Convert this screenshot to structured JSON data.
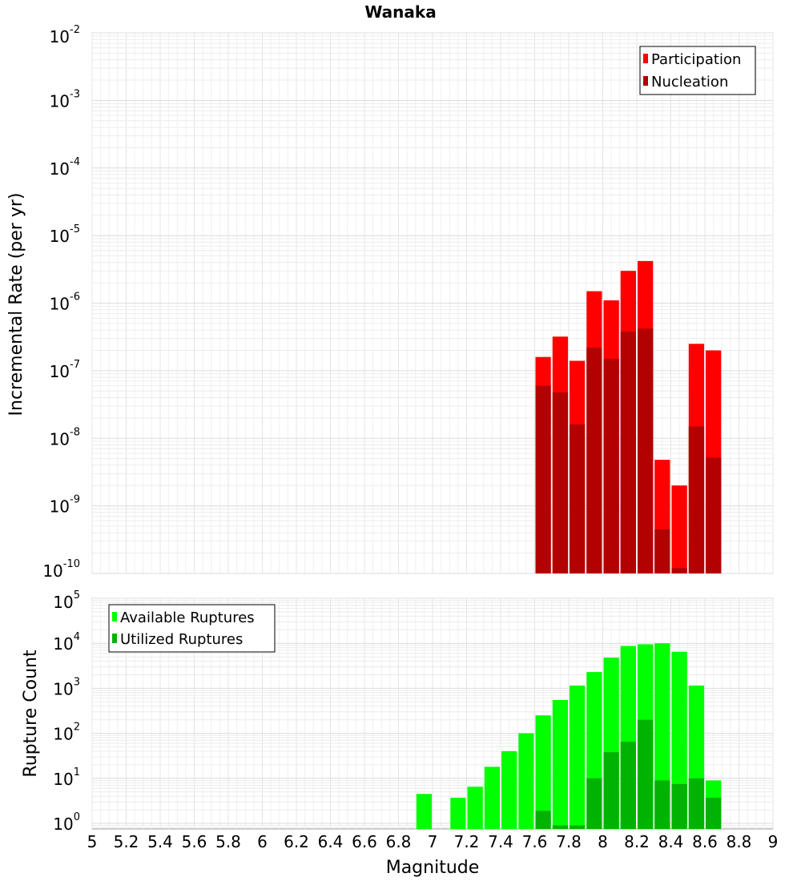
{
  "title": "Wanaka",
  "xlabel": "Magnitude",
  "x_ticks": [
    "5",
    "5.2",
    "5.4",
    "5.6",
    "5.8",
    "6",
    "6.2",
    "6.4",
    "6.6",
    "6.8",
    "7",
    "7.2",
    "7.4",
    "7.6",
    "7.8",
    "8",
    "8.2",
    "8.4",
    "8.6",
    "8.8",
    "9"
  ],
  "chart_data": [
    {
      "type": "bar",
      "title": "Wanaka",
      "xlabel": "",
      "ylabel": "Incremental Rate (per yr)",
      "yscale": "log",
      "ylim": [
        1e-10,
        0.01
      ],
      "xlim": [
        5,
        9
      ],
      "grid": true,
      "legend_position": "top-right",
      "bar_width": 0.1,
      "y_ticks": [
        {
          "base": "10",
          "exp": "-2"
        },
        {
          "base": "10",
          "exp": "-3"
        },
        {
          "base": "10",
          "exp": "-4"
        },
        {
          "base": "10",
          "exp": "-5"
        },
        {
          "base": "10",
          "exp": "-6"
        },
        {
          "base": "10",
          "exp": "-7"
        },
        {
          "base": "10",
          "exp": "-8"
        },
        {
          "base": "10",
          "exp": "-9"
        },
        {
          "base": "10",
          "exp": "-10"
        }
      ],
      "x": [
        7.65,
        7.75,
        7.85,
        7.95,
        8.05,
        8.15,
        8.25,
        8.35,
        8.45,
        8.55,
        8.65
      ],
      "series": [
        {
          "name": "Participation",
          "color": "#ff0000",
          "values": [
            1.6e-07,
            3.2e-07,
            1.4e-07,
            1.5e-06,
            1.1e-06,
            3e-06,
            4.2e-06,
            4.8e-09,
            2e-09,
            2.5e-07,
            2e-07
          ]
        },
        {
          "name": "Nucleation",
          "color": "#b30000",
          "values": [
            6e-08,
            4.8e-08,
            1.6e-08,
            2.2e-07,
            1.5e-07,
            3.8e-07,
            4.2e-07,
            4.5e-10,
            1.2e-10,
            1.5e-08,
            5.2e-09
          ]
        }
      ]
    },
    {
      "type": "bar",
      "xlabel": "Magnitude",
      "ylabel": "Rupture Count",
      "yscale": "log",
      "ylim": [
        0.75,
        100000
      ],
      "xlim": [
        5,
        9
      ],
      "grid": true,
      "legend_position": "top-left",
      "bar_width": 0.1,
      "y_ticks": [
        {
          "base": "10",
          "exp": "5"
        },
        {
          "base": "10",
          "exp": "4"
        },
        {
          "base": "10",
          "exp": "3"
        },
        {
          "base": "10",
          "exp": "2"
        },
        {
          "base": "10",
          "exp": "1"
        },
        {
          "base": "10",
          "exp": "0"
        }
      ],
      "x": [
        6.95,
        7.15,
        7.25,
        7.35,
        7.45,
        7.55,
        7.65,
        7.75,
        7.85,
        7.95,
        8.05,
        8.15,
        8.25,
        8.35,
        8.45,
        8.55,
        8.65
      ],
      "series": [
        {
          "name": "Available Ruptures",
          "color": "#00ff00",
          "values": [
            4.5,
            3.7,
            6.5,
            18,
            40,
            100,
            250,
            550,
            1150,
            2300,
            4800,
            8700,
            9500,
            10000,
            6500,
            1150,
            9
          ]
        },
        {
          "name": "Utilized Ruptures",
          "color": "#00b300",
          "values": [
            null,
            null,
            null,
            null,
            null,
            null,
            1.9,
            0.9,
            0.9,
            10,
            38,
            65,
            200,
            9,
            7.5,
            10,
            3.7
          ]
        }
      ]
    }
  ]
}
